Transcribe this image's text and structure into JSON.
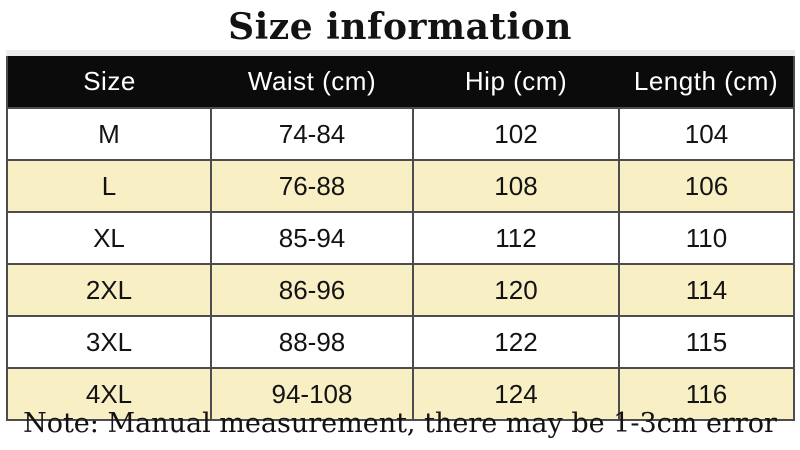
{
  "title": "Size information",
  "note": "Note: Manual measurement, there may be 1-3cm error",
  "chart_data": {
    "type": "table",
    "title": "Size information",
    "columns": [
      "Size",
      "Waist (cm)",
      "Hip (cm)",
      "Length (cm)"
    ],
    "rows": [
      [
        "M",
        "74-84",
        "102",
        "104"
      ],
      [
        "L",
        "76-88",
        "108",
        "106"
      ],
      [
        "XL",
        "85-94",
        "112",
        "110"
      ],
      [
        "2XL",
        "86-96",
        "120",
        "114"
      ],
      [
        "3XL",
        "88-98",
        "122",
        "115"
      ],
      [
        "4XL",
        "94-108",
        "124",
        "116"
      ]
    ],
    "stripe_pattern": "rows L, 2XL, 4XL highlighted cream"
  },
  "colors": {
    "page_bg": "#ffffff",
    "header_bg": "#0b0b0b",
    "header_text": "#ffffff",
    "row_bg": "#ffffff",
    "stripe_bg": "#f8efc5",
    "border": "#4d4d4d",
    "top_strip": "#ececec",
    "text": "#131313"
  }
}
